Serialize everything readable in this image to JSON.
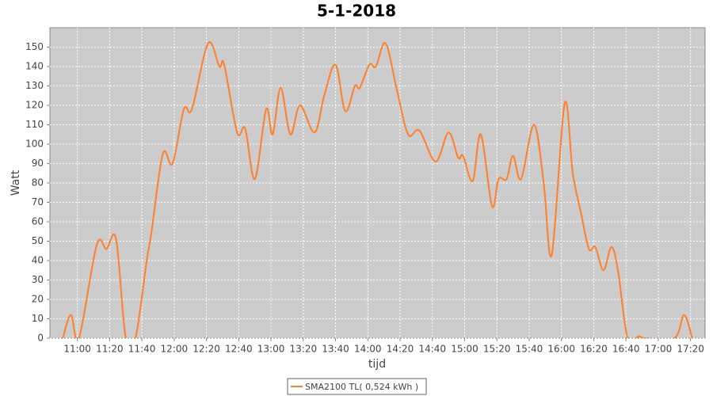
{
  "chart_data": {
    "type": "line",
    "title": "5-1-2018",
    "x_label": "tijd",
    "y_label": "Watt",
    "x": [
      "10:51",
      "10:56",
      "11:01",
      "11:12",
      "11:18",
      "11:24",
      "11:30",
      "11:36",
      "11:43",
      "11:46",
      "11:53",
      "11:59",
      "12:06",
      "12:11",
      "12:21",
      "12:28",
      "12:31",
      "12:39",
      "12:44",
      "12:50",
      "12:57",
      "13:01",
      "13:06",
      "13:12",
      "13:18",
      "13:27",
      "13:33",
      "13:40",
      "13:46",
      "13:52",
      "13:55",
      "14:01",
      "14:05",
      "14:11",
      "14:18",
      "14:25",
      "14:32",
      "14:42",
      "14:50",
      "14:56",
      "14:59",
      "15:05",
      "15:10",
      "15:17",
      "15:21",
      "15:26",
      "15:30",
      "15:35",
      "15:43",
      "15:49",
      "15:54",
      "16:02",
      "16:07",
      "16:12",
      "16:17",
      "16:21",
      "16:26",
      "16:31",
      "16:35",
      "16:41",
      "16:48",
      "16:52",
      "17:10",
      "17:16",
      "17:21"
    ],
    "series": [
      {
        "name": "SMA2100 TL( 0,524 kWh )",
        "color": "#ff7f2a",
        "values": [
          0,
          12,
          0,
          48,
          46,
          51,
          0,
          0,
          40,
          55,
          95,
          90,
          118,
          118,
          152,
          140,
          141,
          106,
          108,
          82,
          118,
          105,
          129,
          105,
          120,
          106,
          125,
          141,
          117,
          130,
          129,
          141,
          140,
          152,
          128,
          105,
          107,
          91,
          106,
          93,
          94,
          81,
          105,
          68,
          82,
          82,
          94,
          82,
          110,
          80,
          43,
          121,
          85,
          65,
          46,
          47,
          35,
          47,
          35,
          0,
          1,
          0,
          0,
          12,
          0
        ]
      }
    ],
    "xlim": [
      "10:43",
      "17:29"
    ],
    "xticks": [
      "11:00",
      "11:20",
      "11:40",
      "12:00",
      "12:20",
      "12:40",
      "13:00",
      "13:20",
      "13:40",
      "14:00",
      "14:20",
      "14:40",
      "15:00",
      "15:20",
      "15:40",
      "16:00",
      "16:20",
      "16:40",
      "17:00",
      "17:20"
    ],
    "ylim": [
      0,
      160
    ],
    "yticks": [
      0,
      10,
      20,
      30,
      40,
      50,
      60,
      70,
      80,
      90,
      100,
      110,
      120,
      130,
      140,
      150
    ],
    "grid": true,
    "legend": "bottom"
  }
}
